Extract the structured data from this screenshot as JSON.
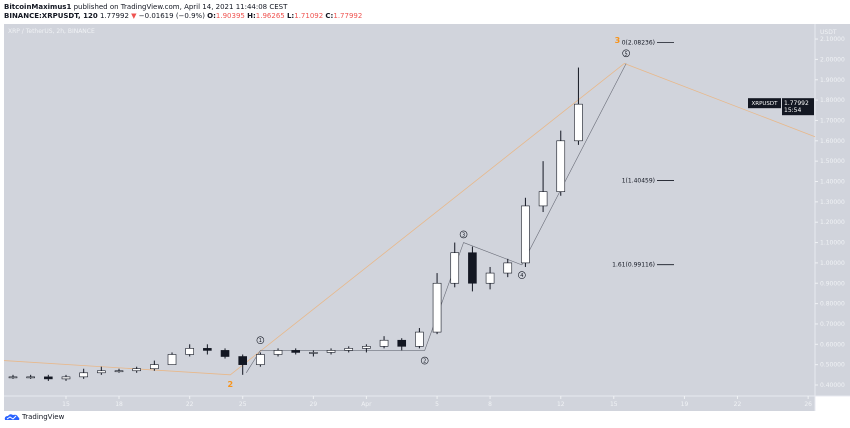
{
  "header": {
    "author": "BitcoinMaximus1",
    "published": "published on TradingView.com, April 14, 2021 11:44:08 CEST",
    "symbol": "BINANCE:XRPUSDT, 120",
    "last": "1.77992",
    "change": "−0.01619 (−0.9%)",
    "o_label": "O:",
    "o": "1.90395",
    "h_label": "H:",
    "h": "1.96265",
    "l_label": "L:",
    "l": "1.71092",
    "c_label": "C:",
    "c": "1.77992"
  },
  "chart_data": {
    "type": "candlestick",
    "title": "XRP / TetherUS, 2h, BINANCE",
    "currency": "USDT",
    "ylim": [
      0.35,
      2.2
    ],
    "yticks": [
      "2.10000",
      "2.00000",
      "1.90000",
      "1.80000",
      "1.70000",
      "1.60000",
      "1.50000",
      "1.40000",
      "1.30000",
      "1.20000",
      "1.10000",
      "1.00000",
      "0.90000",
      "0.80000",
      "0.70000",
      "0.60000",
      "0.50000",
      "0.40000"
    ],
    "xticks": [
      {
        "day": 15,
        "label": "15"
      },
      {
        "day": 18,
        "label": "18"
      },
      {
        "day": 22,
        "label": "22"
      },
      {
        "day": 25,
        "label": "25"
      },
      {
        "day": 29,
        "label": "29"
      },
      {
        "day": 32,
        "label": "Apr"
      },
      {
        "day": 36,
        "label": "5"
      },
      {
        "day": 39,
        "label": "8"
      },
      {
        "day": 43,
        "label": "12"
      },
      {
        "day": 46,
        "label": "15"
      },
      {
        "day": 50,
        "label": "19"
      },
      {
        "day": 53,
        "label": "22"
      },
      {
        "day": 57,
        "label": "26"
      }
    ],
    "ohlc": [
      [
        11,
        0.45,
        0.46,
        0.43,
        0.44
      ],
      [
        12,
        0.44,
        0.45,
        0.43,
        0.44
      ],
      [
        13,
        0.44,
        0.45,
        0.43,
        0.44
      ],
      [
        14,
        0.44,
        0.45,
        0.42,
        0.43
      ],
      [
        15,
        0.43,
        0.45,
        0.42,
        0.44
      ],
      [
        16,
        0.44,
        0.48,
        0.43,
        0.46
      ],
      [
        17,
        0.46,
        0.49,
        0.45,
        0.47
      ],
      [
        18,
        0.47,
        0.48,
        0.46,
        0.47
      ],
      [
        19,
        0.47,
        0.49,
        0.46,
        0.48
      ],
      [
        20,
        0.48,
        0.52,
        0.47,
        0.5
      ],
      [
        21,
        0.5,
        0.56,
        0.5,
        0.55
      ],
      [
        22,
        0.55,
        0.6,
        0.54,
        0.58
      ],
      [
        23,
        0.58,
        0.6,
        0.55,
        0.57
      ],
      [
        24,
        0.57,
        0.58,
        0.53,
        0.54
      ],
      [
        25,
        0.54,
        0.55,
        0.45,
        0.5
      ],
      [
        26,
        0.5,
        0.56,
        0.49,
        0.55
      ],
      [
        27,
        0.55,
        0.58,
        0.54,
        0.57
      ],
      [
        28,
        0.57,
        0.58,
        0.55,
        0.56
      ],
      [
        29,
        0.56,
        0.57,
        0.54,
        0.56
      ],
      [
        30,
        0.56,
        0.58,
        0.55,
        0.57
      ],
      [
        31,
        0.57,
        0.59,
        0.56,
        0.58
      ],
      [
        32,
        0.58,
        0.6,
        0.56,
        0.59
      ],
      [
        33,
        0.59,
        0.64,
        0.58,
        0.62
      ],
      [
        34,
        0.62,
        0.63,
        0.57,
        0.59
      ],
      [
        35,
        0.59,
        0.68,
        0.58,
        0.66
      ],
      [
        36,
        0.66,
        0.95,
        0.65,
        0.9
      ],
      [
        37,
        0.9,
        1.1,
        0.88,
        1.05
      ],
      [
        38,
        1.05,
        1.08,
        0.86,
        0.9
      ],
      [
        39,
        0.9,
        0.98,
        0.87,
        0.95
      ],
      [
        40,
        0.95,
        1.02,
        0.93,
        1.0
      ],
      [
        41,
        1.0,
        1.32,
        0.98,
        1.28
      ],
      [
        42,
        1.28,
        1.5,
        1.25,
        1.35
      ],
      [
        43,
        1.35,
        1.65,
        1.33,
        1.6
      ],
      [
        44,
        1.6,
        1.96,
        1.58,
        1.78
      ]
    ],
    "last_label": "XRPUSDT",
    "last_price": "1.77992",
    "countdown": "15:54",
    "waves": [
      {
        "label": "1",
        "day": 26,
        "price": 0.62
      },
      {
        "label": "2",
        "day": 35.3,
        "price": 0.52
      },
      {
        "label": "3",
        "day": 37.5,
        "price": 1.14
      },
      {
        "label": "4",
        "day": 40.8,
        "price": 0.94
      },
      {
        "label": "5",
        "day": 46.7,
        "price": 2.03
      }
    ],
    "higher_degree": [
      {
        "label": "2",
        "day": 24.3,
        "price": 0.39
      },
      {
        "label": "3",
        "day": 46.6,
        "price": 2.08
      }
    ],
    "fib": [
      {
        "label": "0(2.08236)",
        "price": 2.08236
      },
      {
        "label": "1(1.40459)",
        "price": 1.40459
      },
      {
        "label": "1.61(0.99116)",
        "price": 0.99116
      }
    ],
    "colors": {
      "bg": "#d1d4dc",
      "candle": "#131722",
      "orange": "#f7931a",
      "trend": "#e8b88a"
    }
  },
  "brand": "TradingView"
}
